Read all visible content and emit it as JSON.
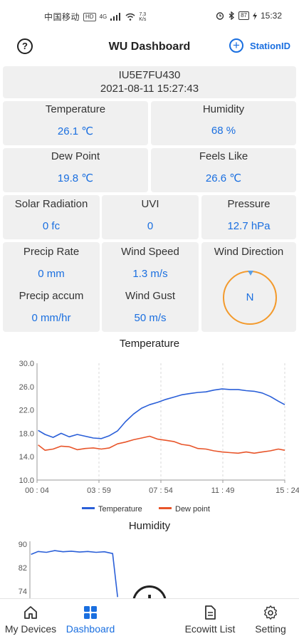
{
  "status_bar": {
    "carrier": "中国移动",
    "hd": "HD",
    "network": "4G",
    "speed_value": "7.3",
    "speed_unit": "K/s",
    "battery": "87",
    "time": "15:32"
  },
  "header": {
    "help_label": "?",
    "title": "WU Dashboard",
    "station_button_label": "StationID"
  },
  "station": {
    "id": "IU5E7FU430",
    "timestamp": "2021-08-11 15:27:43"
  },
  "metrics": {
    "temperature": {
      "label": "Temperature",
      "value": "26.1 ℃"
    },
    "humidity": {
      "label": "Humidity",
      "value": "68 %"
    },
    "dew_point": {
      "label": "Dew Point",
      "value": "19.8 ℃"
    },
    "feels_like": {
      "label": "Feels Like",
      "value": "26.6 ℃"
    },
    "solar_radiation": {
      "label": "Solar Radiation",
      "value": "0 fc"
    },
    "uvi": {
      "label": "UVI",
      "value": "0"
    },
    "pressure": {
      "label": "Pressure",
      "value": "12.7 hPa"
    },
    "precip_rate": {
      "label": "Precip Rate",
      "value": "0 mm"
    },
    "precip_accum": {
      "label": "Precip accum",
      "value": "0 mm/hr"
    },
    "wind_speed": {
      "label": "Wind Speed",
      "value": "1.3 m/s"
    },
    "wind_gust": {
      "label": "Wind Gust",
      "value": "50 m/s"
    },
    "wind_direction": {
      "label": "Wind Direction",
      "value": "N"
    }
  },
  "colors": {
    "accent": "#1a6fe0",
    "temperature_series": "#2a5fd8",
    "dew_series": "#e8552a",
    "compass_ring": "#f39a2c"
  },
  "chart_data": [
    {
      "type": "line",
      "title": "Temperature",
      "xlabel": "",
      "ylabel": "",
      "x_ticks": [
        "00 : 04",
        "03 : 59",
        "07 : 54",
        "11 : 49",
        "15 : 24"
      ],
      "y_ticks": [
        "30.0",
        "26.0",
        "22.0",
        "18.0",
        "14.0",
        "10.0"
      ],
      "ylim": [
        10,
        30
      ],
      "x_hours": [
        0.07,
        0.5,
        1.0,
        1.5,
        2.0,
        2.5,
        3.0,
        3.5,
        4.0,
        4.5,
        5.0,
        5.5,
        6.0,
        6.5,
        7.0,
        7.5,
        8.0,
        8.5,
        9.0,
        9.5,
        10.0,
        10.5,
        11.0,
        11.5,
        12.0,
        12.5,
        13.0,
        13.5,
        14.0,
        14.5,
        15.0,
        15.4
      ],
      "series": [
        {
          "name": "Temperature",
          "values": [
            18.5,
            17.8,
            17.3,
            18.0,
            17.4,
            17.8,
            17.5,
            17.2,
            17.1,
            17.6,
            18.4,
            20.0,
            21.3,
            22.3,
            22.9,
            23.3,
            23.8,
            24.2,
            24.6,
            24.8,
            25.0,
            25.1,
            25.4,
            25.6,
            25.5,
            25.5,
            25.3,
            25.2,
            24.9,
            24.3,
            23.5,
            22.9
          ]
        },
        {
          "name": "Dew point",
          "values": [
            16.0,
            15.1,
            15.3,
            15.8,
            15.7,
            15.2,
            15.4,
            15.5,
            15.3,
            15.5,
            16.2,
            16.5,
            16.9,
            17.2,
            17.5,
            17.0,
            16.8,
            16.6,
            16.1,
            15.9,
            15.4,
            15.3,
            15.0,
            14.8,
            14.7,
            14.6,
            14.8,
            14.6,
            14.8,
            15.0,
            15.3,
            15.1
          ]
        }
      ],
      "legend": [
        "Temperature",
        "Dew point"
      ],
      "legend_position": "bottom",
      "grid": "vertical"
    },
    {
      "type": "line",
      "title": "Humidity",
      "y_ticks": [
        "90",
        "82",
        "74"
      ],
      "series": [
        {
          "name": "Humidity",
          "x_hours": [
            0.07,
            0.5,
            1.0,
            1.5,
            2.0,
            2.5,
            3.0,
            3.5,
            4.0,
            4.5,
            5.0,
            5.3
          ],
          "values": [
            86.5,
            87.5,
            87.2,
            87.8,
            87.4,
            87.6,
            87.3,
            87.5,
            87.2,
            87.4,
            86.8,
            72.0
          ]
        }
      ]
    }
  ],
  "bottom_nav": {
    "items": [
      {
        "label": "My Devices",
        "icon": "home-icon"
      },
      {
        "label": "Dashboard",
        "icon": "dashboard-grid-icon"
      },
      {
        "label": "Ecowitt List",
        "icon": "document-icon"
      },
      {
        "label": "Setting",
        "icon": "gear-icon"
      }
    ],
    "fab_label": "+"
  }
}
